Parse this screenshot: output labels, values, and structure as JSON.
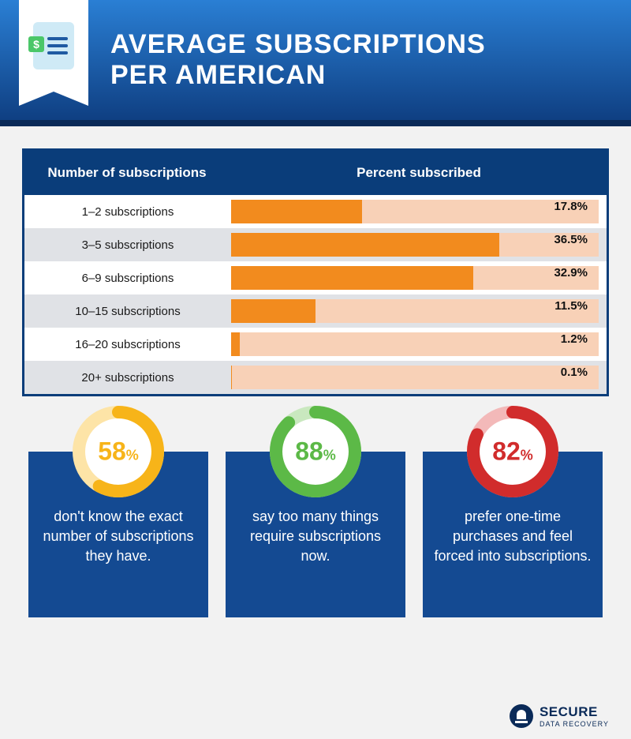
{
  "header": {
    "title_line1": "AVERAGE SUBSCRIPTIONS",
    "title_line2": "PER AMERICAN",
    "bg_gradient_start": "#2a7fd4",
    "bg_gradient_end": "#0f3f82",
    "border_bottom": "#0a2a58"
  },
  "icon": {
    "name": "phone-subscription-icon",
    "dollar_label": "$"
  },
  "chart": {
    "type": "bar",
    "border_color": "#0a3d7a",
    "header_bg": "#0a3d7a",
    "header_text_color": "#ffffff",
    "col_a_header": "Number of subscriptions",
    "col_b_header": "Percent subscribed",
    "row_bg_odd": "#ffffff",
    "row_bg_even": "#e0e2e6",
    "bar_track_color": "#f8d1b7",
    "bar_fill_color": "#f28b1e",
    "max_value": 50,
    "rows": [
      {
        "label": "1–2 subscriptions",
        "value": 17.8,
        "display": "17.8%"
      },
      {
        "label": "3–5 subscriptions",
        "value": 36.5,
        "display": "36.5%"
      },
      {
        "label": "6–9 subscriptions",
        "value": 32.9,
        "display": "32.9%"
      },
      {
        "label": "10–15 subscriptions",
        "value": 11.5,
        "display": "11.5%"
      },
      {
        "label": "16–20 subscriptions",
        "value": 1.2,
        "display": "1.2%"
      },
      {
        "label": "20+ subscriptions",
        "value": 0.1,
        "display": "0.1%"
      }
    ]
  },
  "stats": [
    {
      "value": 58,
      "display_num": "58",
      "display_unit": "%",
      "ring_color": "#f7b419",
      "ring_track": "#fde4a7",
      "text_color": "#f7b419",
      "caption": "don't know the exact number of subscriptions they have."
    },
    {
      "value": 88,
      "display_num": "88",
      "display_unit": "%",
      "ring_color": "#5cb947",
      "ring_track": "#c9e8bf",
      "text_color": "#5cb947",
      "caption": "say too many things require subscriptions now."
    },
    {
      "value": 82,
      "display_num": "82",
      "display_unit": "%",
      "ring_color": "#d12c2c",
      "ring_track": "#f3b9b9",
      "text_color": "#d12c2c",
      "caption": "prefer one-time purchases and feel forced into subscriptions."
    }
  ],
  "card_bg": "#144a92",
  "page_bg": "#f2f2f2",
  "footer": {
    "brand1": "SECURE",
    "brand2": "DATA RECOVERY",
    "color": "#0a2a58"
  }
}
